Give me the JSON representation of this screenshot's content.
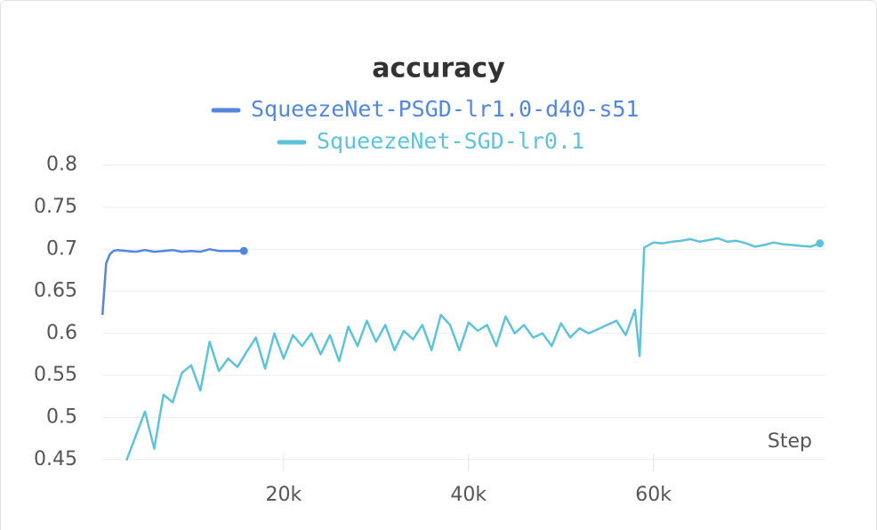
{
  "chart_data": {
    "type": "line",
    "title": "accuracy",
    "xlabel": "Step",
    "xlim": [
      0,
      78600
    ],
    "ylim": [
      0.436,
      0.806
    ],
    "xticks": [
      {
        "value": 20000,
        "label": "20k"
      },
      {
        "value": 40000,
        "label": "40k"
      },
      {
        "value": 60000,
        "label": "60k"
      }
    ],
    "yticks": [
      0.45,
      0.5,
      0.55,
      0.6,
      0.65,
      0.7,
      0.75,
      0.8
    ],
    "grid": true,
    "series": [
      {
        "name": "SqueezeNet-PSGD-lr1.0-d40-s51",
        "color": "#5387dd",
        "x": [
          400,
          800,
          1200,
          1600,
          2000,
          3000,
          4000,
          5000,
          6000,
          7000,
          8000,
          9000,
          10000,
          11000,
          12000,
          13000,
          14000,
          15000,
          15700
        ],
        "values": [
          0.622,
          0.683,
          0.694,
          0.698,
          0.699,
          0.698,
          0.697,
          0.699,
          0.697,
          0.698,
          0.699,
          0.697,
          0.698,
          0.697,
          0.7,
          0.698,
          0.698,
          0.698,
          0.698
        ]
      },
      {
        "name": "SqueezeNet-SGD-lr0.1",
        "color": "#5ec3d9",
        "x": [
          3000,
          4000,
          5000,
          6000,
          7000,
          8000,
          9000,
          10000,
          11000,
          12000,
          13000,
          14000,
          15000,
          16000,
          17000,
          18000,
          19000,
          20000,
          21000,
          22000,
          23000,
          24000,
          25000,
          26000,
          27000,
          28000,
          29000,
          30000,
          31000,
          32000,
          33000,
          34000,
          35000,
          36000,
          37000,
          38000,
          39000,
          40000,
          41000,
          42000,
          43000,
          44000,
          45000,
          46000,
          47000,
          48000,
          49000,
          50000,
          51000,
          52000,
          53000,
          54000,
          55000,
          56000,
          57000,
          58000,
          58500,
          59000,
          60000,
          61000,
          62000,
          63000,
          64000,
          65000,
          66000,
          67000,
          68000,
          69000,
          70000,
          71000,
          72000,
          73000,
          74000,
          75000,
          76000,
          77000,
          78000
        ],
        "values": [
          0.449,
          0.478,
          0.507,
          0.463,
          0.527,
          0.518,
          0.553,
          0.562,
          0.532,
          0.59,
          0.555,
          0.57,
          0.56,
          0.578,
          0.595,
          0.558,
          0.6,
          0.57,
          0.598,
          0.585,
          0.6,
          0.575,
          0.598,
          0.567,
          0.608,
          0.585,
          0.615,
          0.59,
          0.61,
          0.58,
          0.603,
          0.593,
          0.61,
          0.58,
          0.622,
          0.61,
          0.58,
          0.613,
          0.603,
          0.61,
          0.585,
          0.62,
          0.6,
          0.61,
          0.595,
          0.6,
          0.585,
          0.612,
          0.595,
          0.606,
          0.6,
          0.605,
          0.61,
          0.615,
          0.598,
          0.628,
          0.573,
          0.702,
          0.708,
          0.707,
          0.709,
          0.71,
          0.712,
          0.709,
          0.711,
          0.713,
          0.709,
          0.71,
          0.707,
          0.703,
          0.705,
          0.708,
          0.706,
          0.705,
          0.704,
          0.703,
          0.707
        ]
      }
    ]
  }
}
